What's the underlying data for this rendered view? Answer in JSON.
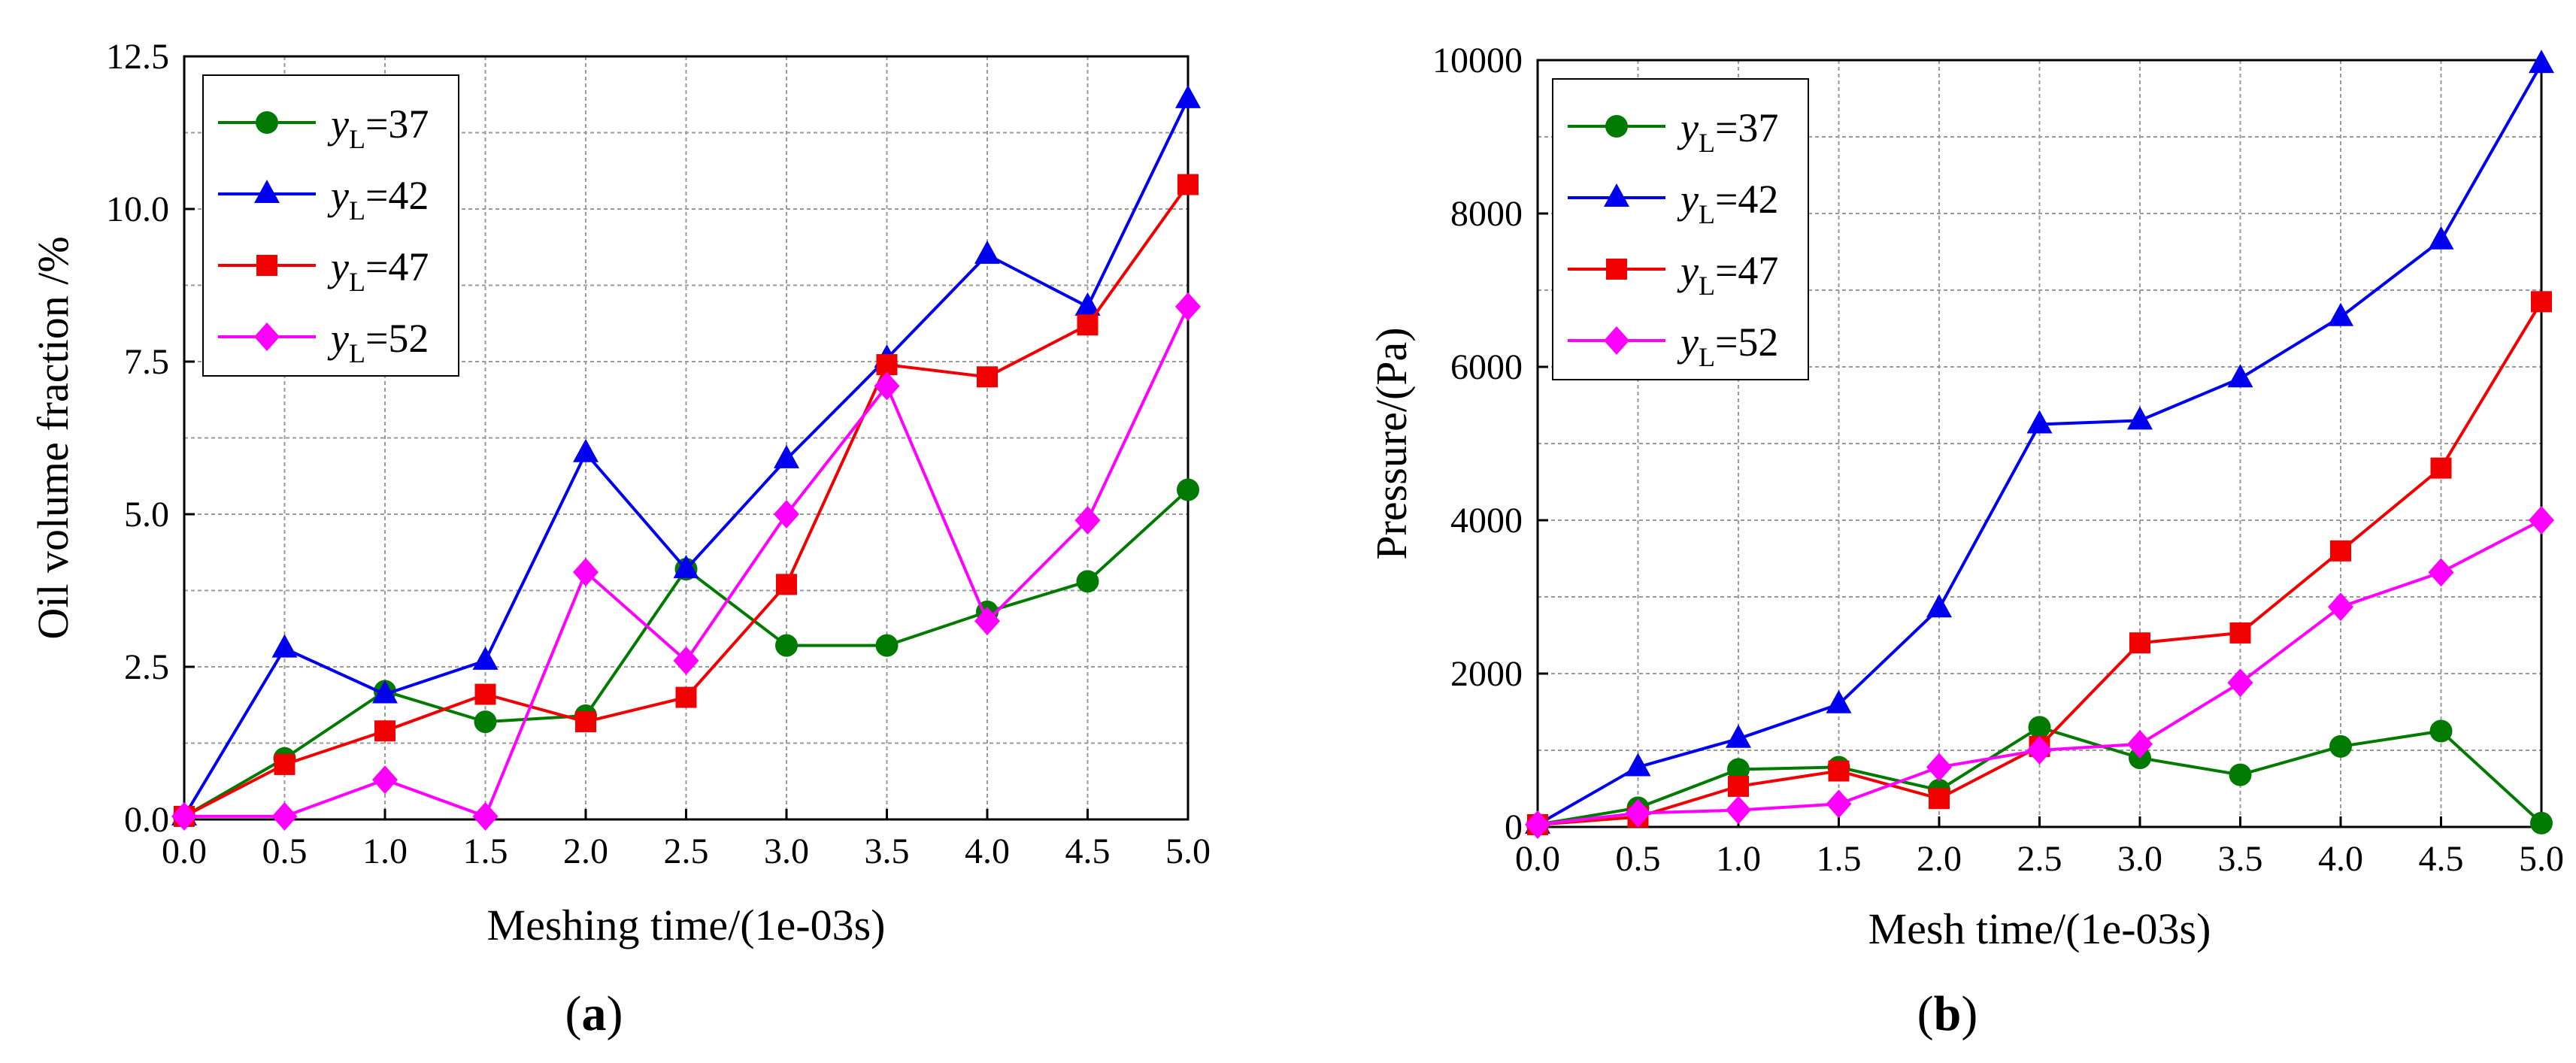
{
  "figure": {
    "panels": [
      {
        "id": "a",
        "caption": "a",
        "chart_data": {
          "type": "line",
          "title": "",
          "xlabel": "Meshing time/(1e-03s)",
          "ylabel": "Oil volume fraction /%",
          "xlim": [
            0,
            5
          ],
          "ylim": [
            0,
            12.5
          ],
          "xticks": [
            0,
            0.5,
            1.0,
            1.5,
            2.0,
            2.5,
            3.0,
            3.5,
            4.0,
            4.5,
            5.0
          ],
          "xtick_labels": [
            "0.0",
            "0.5",
            "1.0",
            "1.5",
            "2.0",
            "2.5",
            "3.0",
            "3.5",
            "4.0",
            "4.5",
            "5.0"
          ],
          "yticks": [
            0,
            2.5,
            5.0,
            7.5,
            10.0,
            12.5
          ],
          "ytick_labels": [
            "0.0",
            "2.5",
            "5.0",
            "7.5",
            "10.0",
            "12.5"
          ],
          "grid": true,
          "legend_position": "top-left",
          "x": [
            0,
            0.5,
            1.0,
            1.5,
            2.0,
            2.5,
            3.0,
            3.5,
            4.0,
            4.5,
            5.0
          ],
          "series": [
            {
              "name_main": "y",
              "name_sub": "L",
              "name_value": "=37",
              "color": "#007a00",
              "marker": "circle",
              "values": [
                0.05,
                1.0,
                2.1,
                1.6,
                1.7,
                4.1,
                2.85,
                2.85,
                3.4,
                3.9,
                5.4
              ]
            },
            {
              "name_main": "y",
              "name_sub": "L",
              "name_value": "=42",
              "color": "#0000f0",
              "marker": "triangle",
              "values": [
                0.05,
                2.8,
                2.05,
                2.6,
                6.0,
                4.1,
                5.9,
                7.55,
                9.25,
                8.4,
                11.8
              ]
            },
            {
              "name_main": "y",
              "name_sub": "L",
              "name_value": "=47",
              "color": "#f00000",
              "marker": "square",
              "values": [
                0.05,
                0.9,
                1.45,
                2.05,
                1.6,
                2.0,
                3.85,
                7.45,
                7.25,
                8.1,
                10.4
              ]
            },
            {
              "name_main": "y",
              "name_sub": "L",
              "name_value": "=52",
              "color": "#ff00ff",
              "marker": "diamond",
              "values": [
                0.05,
                0.05,
                0.65,
                0.05,
                4.05,
                2.6,
                5.0,
                7.1,
                3.25,
                4.9,
                8.4
              ]
            }
          ]
        }
      },
      {
        "id": "b",
        "caption": "b",
        "chart_data": {
          "type": "line",
          "title": "",
          "xlabel": "Mesh time/(1e-03s)",
          "ylabel": "Pressure/(Pa)",
          "xlim": [
            0,
            5
          ],
          "ylim": [
            0,
            10000
          ],
          "xticks": [
            0,
            0.5,
            1.0,
            1.5,
            2.0,
            2.5,
            3.0,
            3.5,
            4.0,
            4.5,
            5.0
          ],
          "xtick_labels": [
            "0.0",
            "0.5",
            "1.0",
            "1.5",
            "2.0",
            "2.5",
            "3.0",
            "3.5",
            "4.0",
            "4.5",
            "5.0"
          ],
          "yticks": [
            0,
            2000,
            4000,
            6000,
            8000,
            10000
          ],
          "ytick_labels": [
            "0",
            "2000",
            "4000",
            "6000",
            "8000",
            "10000"
          ],
          "grid": true,
          "legend_position": "top-left",
          "x": [
            0,
            0.5,
            1.0,
            1.5,
            2.0,
            2.5,
            3.0,
            3.5,
            4.0,
            4.5,
            5.0
          ],
          "series": [
            {
              "name_main": "y",
              "name_sub": "L",
              "name_value": "=37",
              "color": "#007a00",
              "marker": "circle",
              "values": [
                30,
                250,
                750,
                780,
                480,
                1300,
                900,
                680,
                1050,
                1250,
                50
              ]
            },
            {
              "name_main": "y",
              "name_sub": "L",
              "name_value": "=42",
              "color": "#0000f0",
              "marker": "triangle",
              "values": [
                30,
                780,
                1150,
                1600,
                2850,
                5250,
                5300,
                5850,
                6650,
                7650,
                9950
              ]
            },
            {
              "name_main": "y",
              "name_sub": "L",
              "name_value": "=47",
              "color": "#f00000",
              "marker": "square",
              "values": [
                30,
                130,
                530,
                730,
                370,
                1050,
                2400,
                2530,
                3600,
                4680,
                6850
              ]
            },
            {
              "name_main": "y",
              "name_sub": "L",
              "name_value": "=52",
              "color": "#ff00ff",
              "marker": "diamond",
              "values": [
                30,
                180,
                220,
                300,
                780,
                1000,
                1080,
                1880,
                2870,
                3320,
                4000
              ]
            }
          ]
        }
      }
    ]
  }
}
